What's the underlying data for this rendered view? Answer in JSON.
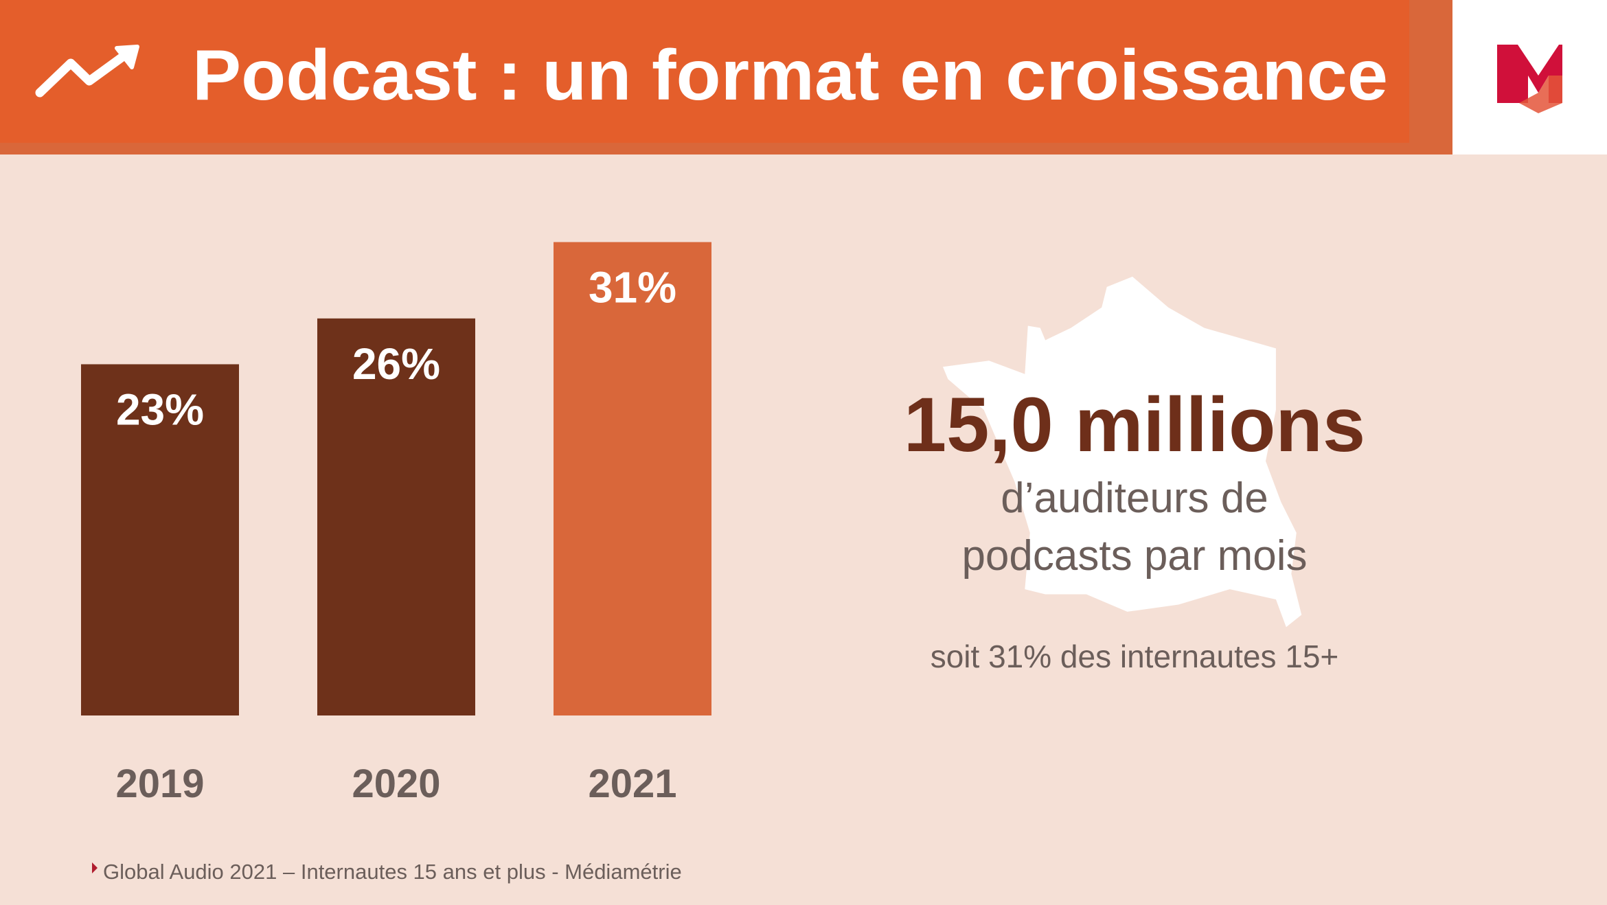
{
  "header": {
    "title": "Podcast : un format en croissance"
  },
  "chart_data": {
    "type": "bar",
    "categories": [
      "2019",
      "2020",
      "2021"
    ],
    "values": [
      23,
      26,
      31
    ],
    "value_labels": [
      "23%",
      "26%",
      "31%"
    ],
    "colors": [
      "#6e311a",
      "#6e311a",
      "#d9673a"
    ]
  },
  "highlight": {
    "figure": "15,0 millions",
    "caption_lines": [
      "d’auditeurs de",
      "podcasts par mois"
    ],
    "note": "soit 31% des internautes 15+"
  },
  "footer": {
    "source": "Global Audio 2021 – Internautes 15 ans et plus - Médiamétrie"
  }
}
